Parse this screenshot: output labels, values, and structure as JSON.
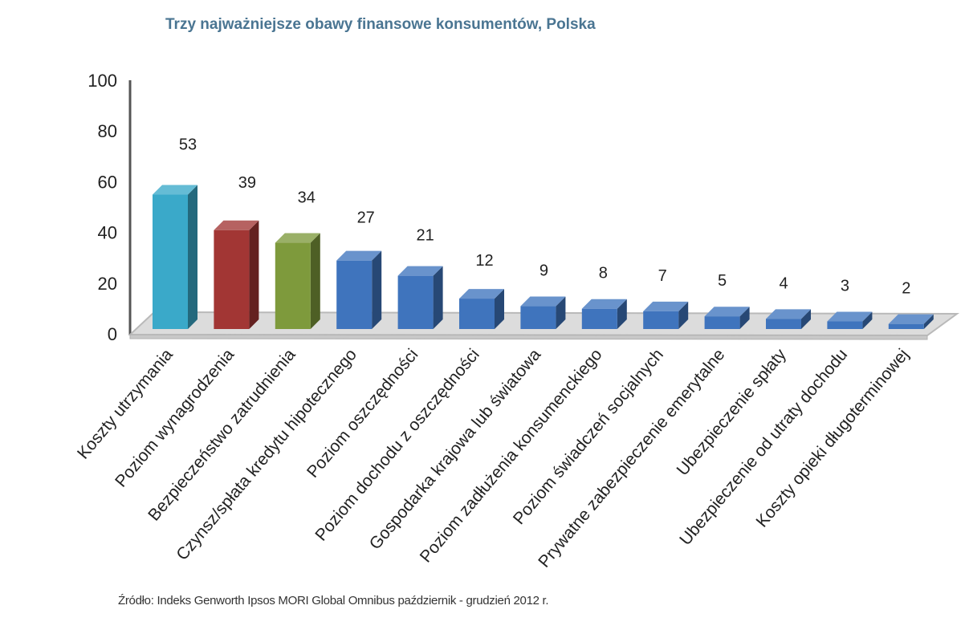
{
  "title": "Trzy najważniejsze obawy finansowe konsumentów, Polska",
  "source": "Źródło: Indeks Genworth Ipsos MORI Global Omnibus październik - grudzień 2012 r.",
  "colors": {
    "cyan": "#3aa9c9",
    "red": "#a23634",
    "green": "#7e9a3c",
    "blue": "#3f74bd",
    "floor": "#dcdcdc",
    "axis": "#555555"
  },
  "chart_data": {
    "type": "bar",
    "title": "Trzy najważniejsze obawy finansowe konsumentów, Polska",
    "categories": [
      "Koszty utrzymania",
      "Poziom wynagrodzenia",
      "Bezpieczeństwo zatrudnienia",
      "Czynsz/spłata kredytu hipotecznego",
      "Poziom oszczędności",
      "Poziom dochodu z oszczędności",
      "Gospodarka krajowa lub światowa",
      "Poziom zadłużenia konsumenckiego",
      "Poziom świadczeń socjalnych",
      "Prywatne zabezpieczenie emerytalne",
      "Ubezpieczenie spłaty",
      "Ubezpieczenie od utraty dochodu",
      "Koszty opieki długoterminowej"
    ],
    "values": [
      53,
      39,
      34,
      27,
      21,
      12,
      9,
      8,
      7,
      5,
      4,
      3,
      2
    ],
    "bar_colors": [
      "cyan",
      "red",
      "green",
      "blue",
      "blue",
      "blue",
      "blue",
      "blue",
      "blue",
      "blue",
      "blue",
      "blue",
      "blue"
    ],
    "yticks": [
      0,
      20,
      40,
      60,
      80,
      100
    ],
    "ylim": [
      0,
      100
    ],
    "xlabel": "",
    "ylabel": "",
    "style": "3d-bar",
    "grid": false,
    "legend": "none"
  }
}
